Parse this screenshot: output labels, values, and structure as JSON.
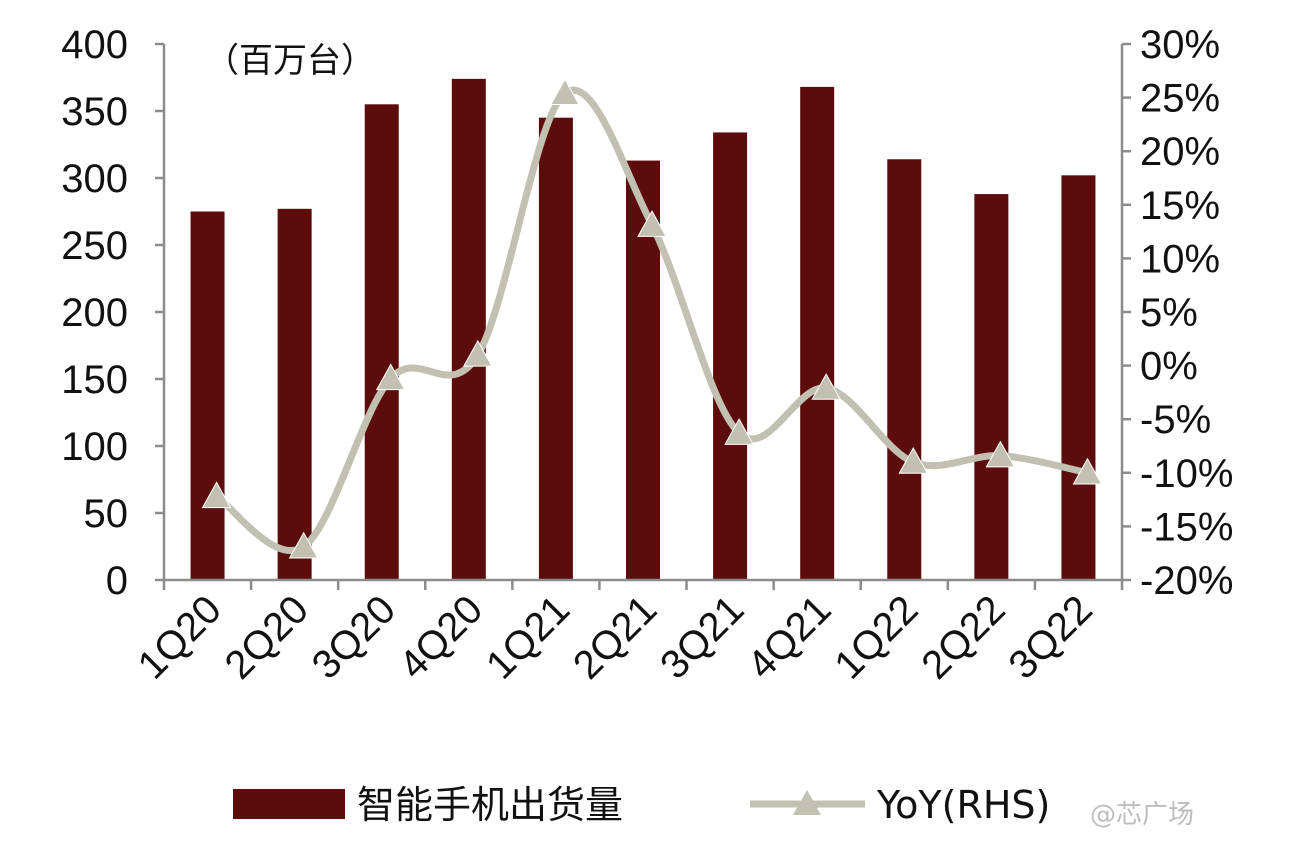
{
  "colors": {
    "bar": "#5c0d0b",
    "line": "#c2c0b1",
    "axis": "#8c8c8c",
    "text": "#111111",
    "watermark": "#bdbdbd"
  },
  "unit_label": "（百万台）",
  "watermark": "@芯广场",
  "chart_data": {
    "type": "bar",
    "categories": [
      "1Q20",
      "2Q20",
      "3Q20",
      "4Q20",
      "1Q21",
      "2Q21",
      "3Q21",
      "4Q21",
      "1Q22",
      "2Q22",
      "3Q22"
    ],
    "series": [
      {
        "name": "智能手机出货量",
        "type": "bar",
        "axis": "left",
        "values": [
          275,
          277,
          355,
          374,
          345,
          313,
          334,
          368,
          314,
          288,
          302
        ]
      },
      {
        "name": "YoY(RHS)",
        "type": "line",
        "axis": "right",
        "marker": "triangle",
        "values": [
          -12.2,
          -16.9,
          -1.2,
          1.0,
          25.4,
          13.1,
          -6.3,
          -2.1,
          -9.0,
          -8.4,
          -10.0
        ]
      }
    ],
    "y_left": {
      "min": 0,
      "max": 400,
      "step": 50
    },
    "y_right": {
      "min": -20,
      "max": 30,
      "step": 5,
      "suffix": "%"
    },
    "legend_position": "bottom",
    "grid": false
  }
}
